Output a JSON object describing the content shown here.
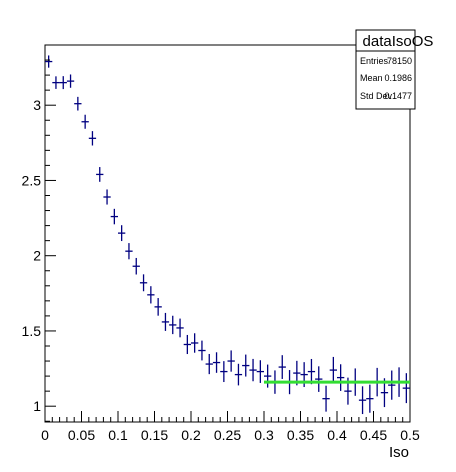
{
  "chart_data": {
    "type": "scatter",
    "title": "",
    "xlabel": "Iso",
    "ylabel": "",
    "xlim": [
      0,
      0.5
    ],
    "ylim": [
      0.895,
      3.4
    ],
    "grid": false,
    "x_ticks": [
      0,
      0.05,
      0.1,
      0.15,
      0.2,
      0.25,
      0.3,
      0.35,
      0.4,
      0.45,
      0.5
    ],
    "x_tick_labels": [
      "0",
      "0.05",
      "0.1",
      "0.15",
      "0.2",
      "0.25",
      "0.3",
      "0.35",
      "0.4",
      "0.45",
      "0.5"
    ],
    "y_ticks": [
      1,
      1.5,
      2,
      2.5,
      3
    ],
    "y_tick_labels": [
      "1",
      "1.5",
      "2",
      "2.5",
      "3"
    ],
    "stats_box": {
      "title": "dataIsoOS",
      "rows": [
        {
          "label": "Entries",
          "value": "78150"
        },
        {
          "label": "Mean",
          "value": "0.1986"
        },
        {
          "label": "Std Dev",
          "value": "0.1477"
        }
      ]
    },
    "bin_width": 0.01,
    "series": [
      {
        "marker": "error-cross",
        "color": "#000080",
        "x": [
          0.005,
          0.015,
          0.025,
          0.035,
          0.045,
          0.055,
          0.065,
          0.075,
          0.085,
          0.095,
          0.105,
          0.115,
          0.125,
          0.135,
          0.145,
          0.155,
          0.165,
          0.175,
          0.185,
          0.195,
          0.205,
          0.215,
          0.225,
          0.235,
          0.245,
          0.255,
          0.265,
          0.275,
          0.285,
          0.295,
          0.305,
          0.315,
          0.325,
          0.335,
          0.345,
          0.355,
          0.365,
          0.375,
          0.385,
          0.395,
          0.405,
          0.415,
          0.425,
          0.435,
          0.445,
          0.455,
          0.465,
          0.475,
          0.485,
          0.495
        ],
        "y": [
          3.29,
          3.15,
          3.15,
          3.16,
          3.01,
          2.89,
          2.78,
          2.54,
          2.39,
          2.26,
          2.15,
          2.03,
          1.93,
          1.82,
          1.74,
          1.66,
          1.56,
          1.54,
          1.52,
          1.41,
          1.42,
          1.37,
          1.28,
          1.29,
          1.23,
          1.3,
          1.21,
          1.27,
          1.24,
          1.23,
          1.2,
          1.16,
          1.26,
          1.16,
          1.22,
          1.21,
          1.23,
          1.18,
          1.05,
          1.24,
          1.19,
          1.1,
          1.16,
          1.04,
          1.05,
          1.16,
          1.09,
          1.14,
          1.16,
          1.12
        ]
      }
    ],
    "fit": {
      "color": "#33dd33",
      "x": [
        0.3,
        0.5
      ],
      "y": [
        1.16,
        1.16
      ]
    }
  }
}
